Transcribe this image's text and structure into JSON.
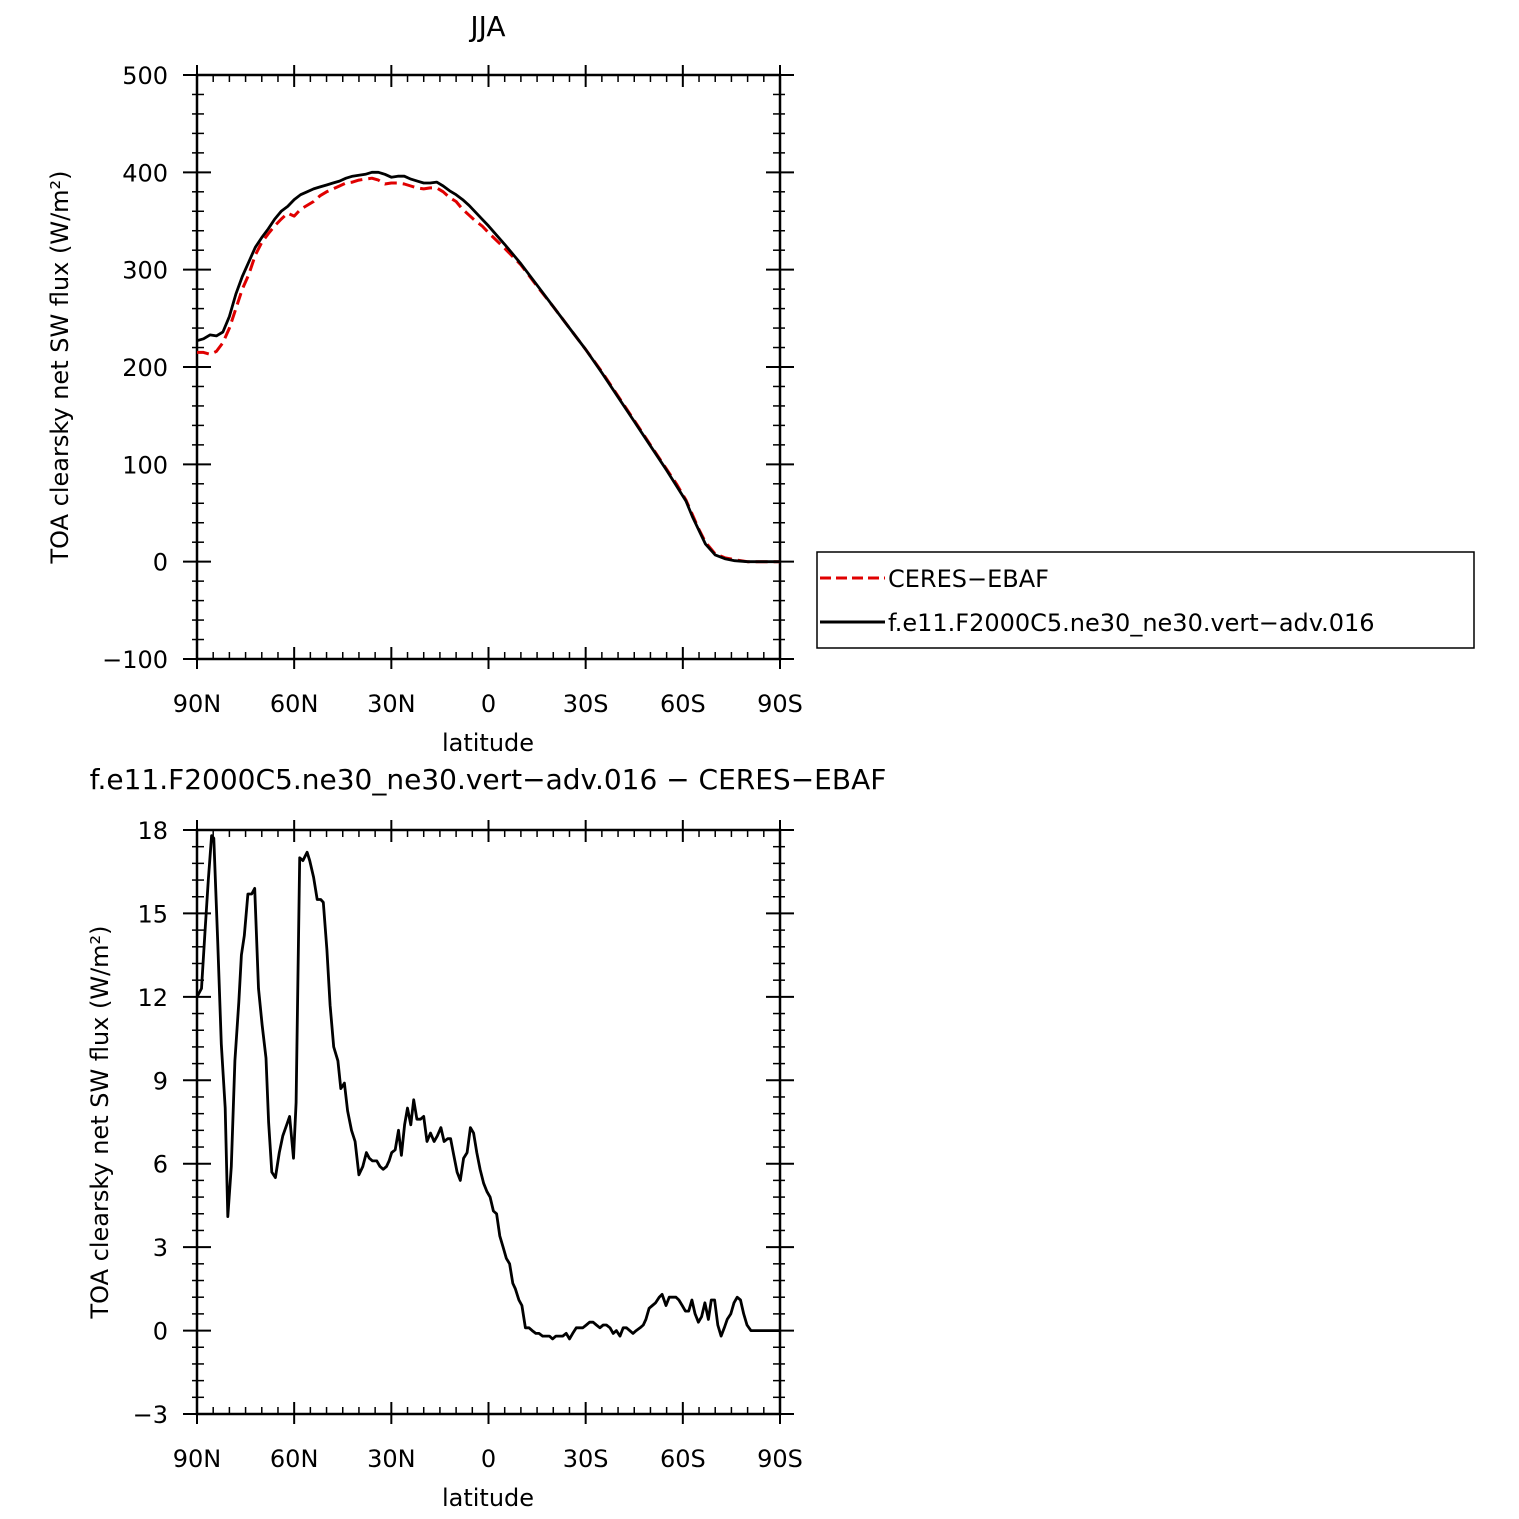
{
  "figure": {
    "top_title": "JJA",
    "bottom_title": "f.e11.F2000C5.ne30_ne30.vert−adv.016 − CERES−EBAF"
  },
  "legend": {
    "entries": [
      {
        "label": "CERES−EBAF",
        "color": "#e00000",
        "dash": true
      },
      {
        "label": "f.e11.F2000C5.ne30_ne30.vert−adv.016",
        "color": "#000000",
        "dash": false
      }
    ],
    "placement": "right"
  },
  "chart_data": [
    {
      "type": "line",
      "title": "JJA",
      "xlabel": "latitude",
      "ylabel": "TOA clearsky net SW flux (W/m²)",
      "xlim": [
        90,
        -90
      ],
      "ylim": [
        -100,
        500
      ],
      "x_ticks": [
        {
          "value": 90,
          "label": "90N"
        },
        {
          "value": 60,
          "label": "60N"
        },
        {
          "value": 30,
          "label": "30N"
        },
        {
          "value": 0,
          "label": "0"
        },
        {
          "value": -30,
          "label": "30S"
        },
        {
          "value": -60,
          "label": "60S"
        },
        {
          "value": -90,
          "label": "90S"
        }
      ],
      "y_ticks": [
        {
          "value": 500,
          "label": "500"
        },
        {
          "value": 400,
          "label": "400"
        },
        {
          "value": 300,
          "label": "300"
        },
        {
          "value": 200,
          "label": "200"
        },
        {
          "value": 100,
          "label": "100"
        },
        {
          "value": 0,
          "label": "0"
        },
        {
          "value": -100,
          "label": "−100"
        }
      ],
      "series": [
        {
          "name": "CERES−EBAF",
          "color": "#e00000",
          "dash": true,
          "x": [
            90,
            88,
            86,
            84,
            82,
            80,
            78,
            76,
            74,
            72,
            70,
            68,
            66,
            64,
            62,
            60,
            58,
            56,
            54,
            52,
            50,
            48,
            46,
            44,
            42,
            40,
            38,
            36,
            34,
            32,
            30,
            28,
            26,
            24,
            22,
            20,
            18,
            16,
            14,
            12,
            10,
            8,
            6,
            4,
            2,
            0,
            -5,
            -10,
            -15,
            -20,
            -25,
            -30,
            -35,
            -40,
            -45,
            -50,
            -55,
            -58,
            -61,
            -63,
            -65,
            -67,
            -70,
            -73,
            -76,
            -80,
            -85,
            -90
          ],
          "y": [
            215,
            215,
            213,
            216,
            225,
            240,
            260,
            280,
            295,
            315,
            328,
            337,
            345,
            352,
            358,
            355,
            362,
            366,
            370,
            376,
            380,
            383,
            386,
            389,
            390,
            392,
            393,
            394,
            392,
            388,
            389,
            389,
            388,
            386,
            384,
            383,
            384,
            384,
            380,
            374,
            370,
            362,
            356,
            350,
            345,
            338,
            322,
            305,
            283,
            262,
            240,
            218,
            195,
            170,
            145,
            120,
            95,
            80,
            63,
            48,
            33,
            20,
            8,
            4,
            2,
            0,
            0,
            0
          ]
        },
        {
          "name": "f.e11.F2000C5.ne30_ne30.vert−adv.016",
          "color": "#000000",
          "dash": false,
          "x": [
            90,
            88,
            86,
            84,
            82,
            80,
            78,
            76,
            74,
            72,
            70,
            68,
            66,
            64,
            62,
            60,
            58,
            56,
            54,
            52,
            50,
            48,
            46,
            44,
            42,
            40,
            38,
            36,
            34,
            32,
            30,
            28,
            26,
            24,
            22,
            20,
            18,
            16,
            14,
            12,
            10,
            8,
            6,
            4,
            2,
            0,
            -5,
            -10,
            -15,
            -20,
            -25,
            -30,
            -35,
            -40,
            -45,
            -50,
            -55,
            -58,
            -61,
            -63,
            -65,
            -67,
            -70,
            -73,
            -76,
            -80,
            -85,
            -90
          ],
          "y": [
            227,
            229,
            233,
            232,
            236,
            252,
            275,
            293,
            308,
            323,
            333,
            342,
            352,
            360,
            365,
            372,
            377,
            380,
            383,
            385,
            387,
            389,
            391,
            394,
            396,
            397,
            398,
            400,
            400,
            398,
            395,
            396,
            396,
            393,
            391,
            389,
            389,
            390,
            386,
            381,
            377,
            372,
            366,
            359,
            352,
            345,
            326,
            306,
            284,
            262,
            240,
            218,
            194,
            169,
            144,
            119,
            94,
            78,
            62,
            46,
            32,
            18,
            7,
            3,
            1,
            0,
            0,
            0
          ]
        }
      ]
    },
    {
      "type": "line",
      "title": "f.e11.F2000C5.ne30_ne30.vert−adv.016 − CERES−EBAF",
      "xlabel": "latitude",
      "ylabel": "TOA clearsky net SW flux (W/m²)",
      "xlim": [
        90,
        -90
      ],
      "ylim": [
        -3,
        18
      ],
      "x_ticks": [
        {
          "value": 90,
          "label": "90N"
        },
        {
          "value": 60,
          "label": "60N"
        },
        {
          "value": 30,
          "label": "30N"
        },
        {
          "value": 0,
          "label": "0"
        },
        {
          "value": -30,
          "label": "30S"
        },
        {
          "value": -60,
          "label": "60S"
        },
        {
          "value": -90,
          "label": "90S"
        }
      ],
      "y_ticks": [
        {
          "value": 18,
          "label": "18"
        },
        {
          "value": 15,
          "label": "15"
        },
        {
          "value": 12,
          "label": "12"
        },
        {
          "value": 9,
          "label": "9"
        },
        {
          "value": 6,
          "label": "6"
        },
        {
          "value": 3,
          "label": "3"
        },
        {
          "value": 0,
          "label": "0"
        },
        {
          "value": -3,
          "label": "−3"
        }
      ],
      "series": [
        {
          "name": "f.e11.F2000C5.ne30_ne30.vert−adv.016 − CERES−EBAF",
          "color": "#000000",
          "dash": false,
          "x": [
            90,
            88.6,
            87.5,
            86.5,
            85.5,
            84.8,
            83.6,
            82.5,
            81.3,
            80.5,
            79.4,
            78.3,
            77.1,
            76.3,
            75.4,
            74.3,
            73.1,
            72.2,
            71.0,
            69.9,
            68.7,
            67.9,
            66.9,
            65.8,
            64.6,
            63.5,
            62.3,
            61.4,
            60.2,
            59.4,
            58.3,
            57.3,
            56.0,
            55.2,
            54.0,
            52.9,
            51.8,
            51.0,
            49.9,
            48.9,
            47.8,
            46.5,
            45.6,
            44.5,
            43.5,
            42.3,
            41.2,
            40.0,
            38.8,
            37.7,
            36.8,
            35.8,
            34.5,
            33.5,
            32.5,
            31.5,
            30.7,
            29.9,
            28.8,
            27.8,
            26.9,
            25.9,
            25.0,
            24.0,
            23.1,
            22.1,
            21.0,
            20.0,
            19.0,
            17.9,
            16.8,
            15.8,
            14.7,
            13.7,
            12.6,
            11.7,
            10.7,
            9.7,
            8.7,
            7.7,
            6.6,
            5.6,
            4.6,
            3.6,
            2.6,
            1.5,
            0.5,
            -0.5,
            -1.5,
            -2.5,
            -3.5,
            -4.5,
            -5.5,
            -6.5,
            -7.5,
            -8.3,
            -9.4,
            -10.3,
            -11.4,
            -12.5,
            -13.5,
            -14.6,
            -15.6,
            -16.7,
            -17.8,
            -18.8,
            -19.8,
            -20.8,
            -21.9,
            -22.9,
            -24.0,
            -25.0,
            -26.0,
            -27.1,
            -28.2,
            -29.1,
            -30.2,
            -31.2,
            -32.3,
            -33.3,
            -34.4,
            -35.4,
            -36.4,
            -37.5,
            -38.5,
            -39.5,
            -40.6,
            -41.6,
            -42.6,
            -43.6,
            -44.6,
            -45.6,
            -46.8,
            -47.8,
            -48.6,
            -49.6,
            -50.6,
            -51.6,
            -52.7,
            -53.6,
            -54.8,
            -55.8,
            -56.8,
            -57.9,
            -58.8,
            -59.8,
            -60.8,
            -61.8,
            -62.8,
            -63.8,
            -64.8,
            -65.8,
            -66.8,
            -67.9,
            -68.8,
            -69.8,
            -70.8,
            -71.8,
            -72.8,
            -73.7,
            -74.8,
            -75.8,
            -76.8,
            -77.8,
            -78.8,
            -79.8,
            -81.0,
            -82.5,
            -84,
            -86,
            -88,
            -90
          ],
          "y": [
            12.0,
            12.3,
            14.4,
            16.2,
            17.8,
            17.7,
            14.0,
            10.3,
            8.0,
            4.1,
            5.9,
            9.7,
            11.8,
            13.5,
            14.2,
            15.7,
            15.7,
            15.9,
            12.3,
            11.0,
            9.8,
            7.5,
            5.7,
            5.5,
            6.4,
            7.0,
            7.4,
            7.7,
            6.2,
            8.2,
            17.0,
            16.9,
            17.2,
            16.9,
            16.3,
            15.5,
            15.5,
            15.4,
            13.7,
            11.7,
            10.2,
            9.7,
            8.7,
            8.9,
            7.9,
            7.2,
            6.8,
            5.6,
            5.9,
            6.4,
            6.2,
            6.1,
            6.1,
            5.9,
            5.8,
            5.9,
            6.1,
            6.4,
            6.5,
            7.2,
            6.3,
            7.4,
            8.0,
            7.4,
            8.3,
            7.6,
            7.6,
            7.7,
            6.8,
            7.1,
            6.8,
            7.0,
            7.3,
            6.8,
            6.9,
            6.9,
            6.3,
            5.7,
            5.4,
            6.2,
            6.4,
            7.3,
            7.1,
            6.4,
            5.8,
            5.3,
            5.0,
            4.8,
            4.3,
            4.2,
            3.4,
            3.0,
            2.6,
            2.4,
            1.7,
            1.5,
            1.1,
            0.9,
            0.1,
            0.1,
            0.0,
            -0.1,
            -0.1,
            -0.2,
            -0.2,
            -0.2,
            -0.3,
            -0.2,
            -0.2,
            -0.2,
            -0.1,
            -0.3,
            -0.1,
            0.1,
            0.1,
            0.1,
            0.2,
            0.3,
            0.3,
            0.2,
            0.1,
            0.2,
            0.2,
            0.1,
            -0.1,
            0.0,
            -0.2,
            0.1,
            0.1,
            0.0,
            -0.1,
            0.0,
            0.1,
            0.2,
            0.4,
            0.8,
            0.9,
            1.0,
            1.2,
            1.3,
            0.9,
            1.2,
            1.2,
            1.2,
            1.1,
            0.9,
            0.7,
            0.7,
            1.1,
            0.6,
            0.3,
            0.5,
            1.0,
            0.4,
            1.1,
            1.1,
            0.2,
            -0.2,
            0.1,
            0.4,
            0.6,
            1.0,
            1.2,
            1.1,
            0.6,
            0.2,
            0.0,
            0.0,
            0.0,
            0.0,
            0.0,
            0.0
          ]
        }
      ]
    }
  ]
}
